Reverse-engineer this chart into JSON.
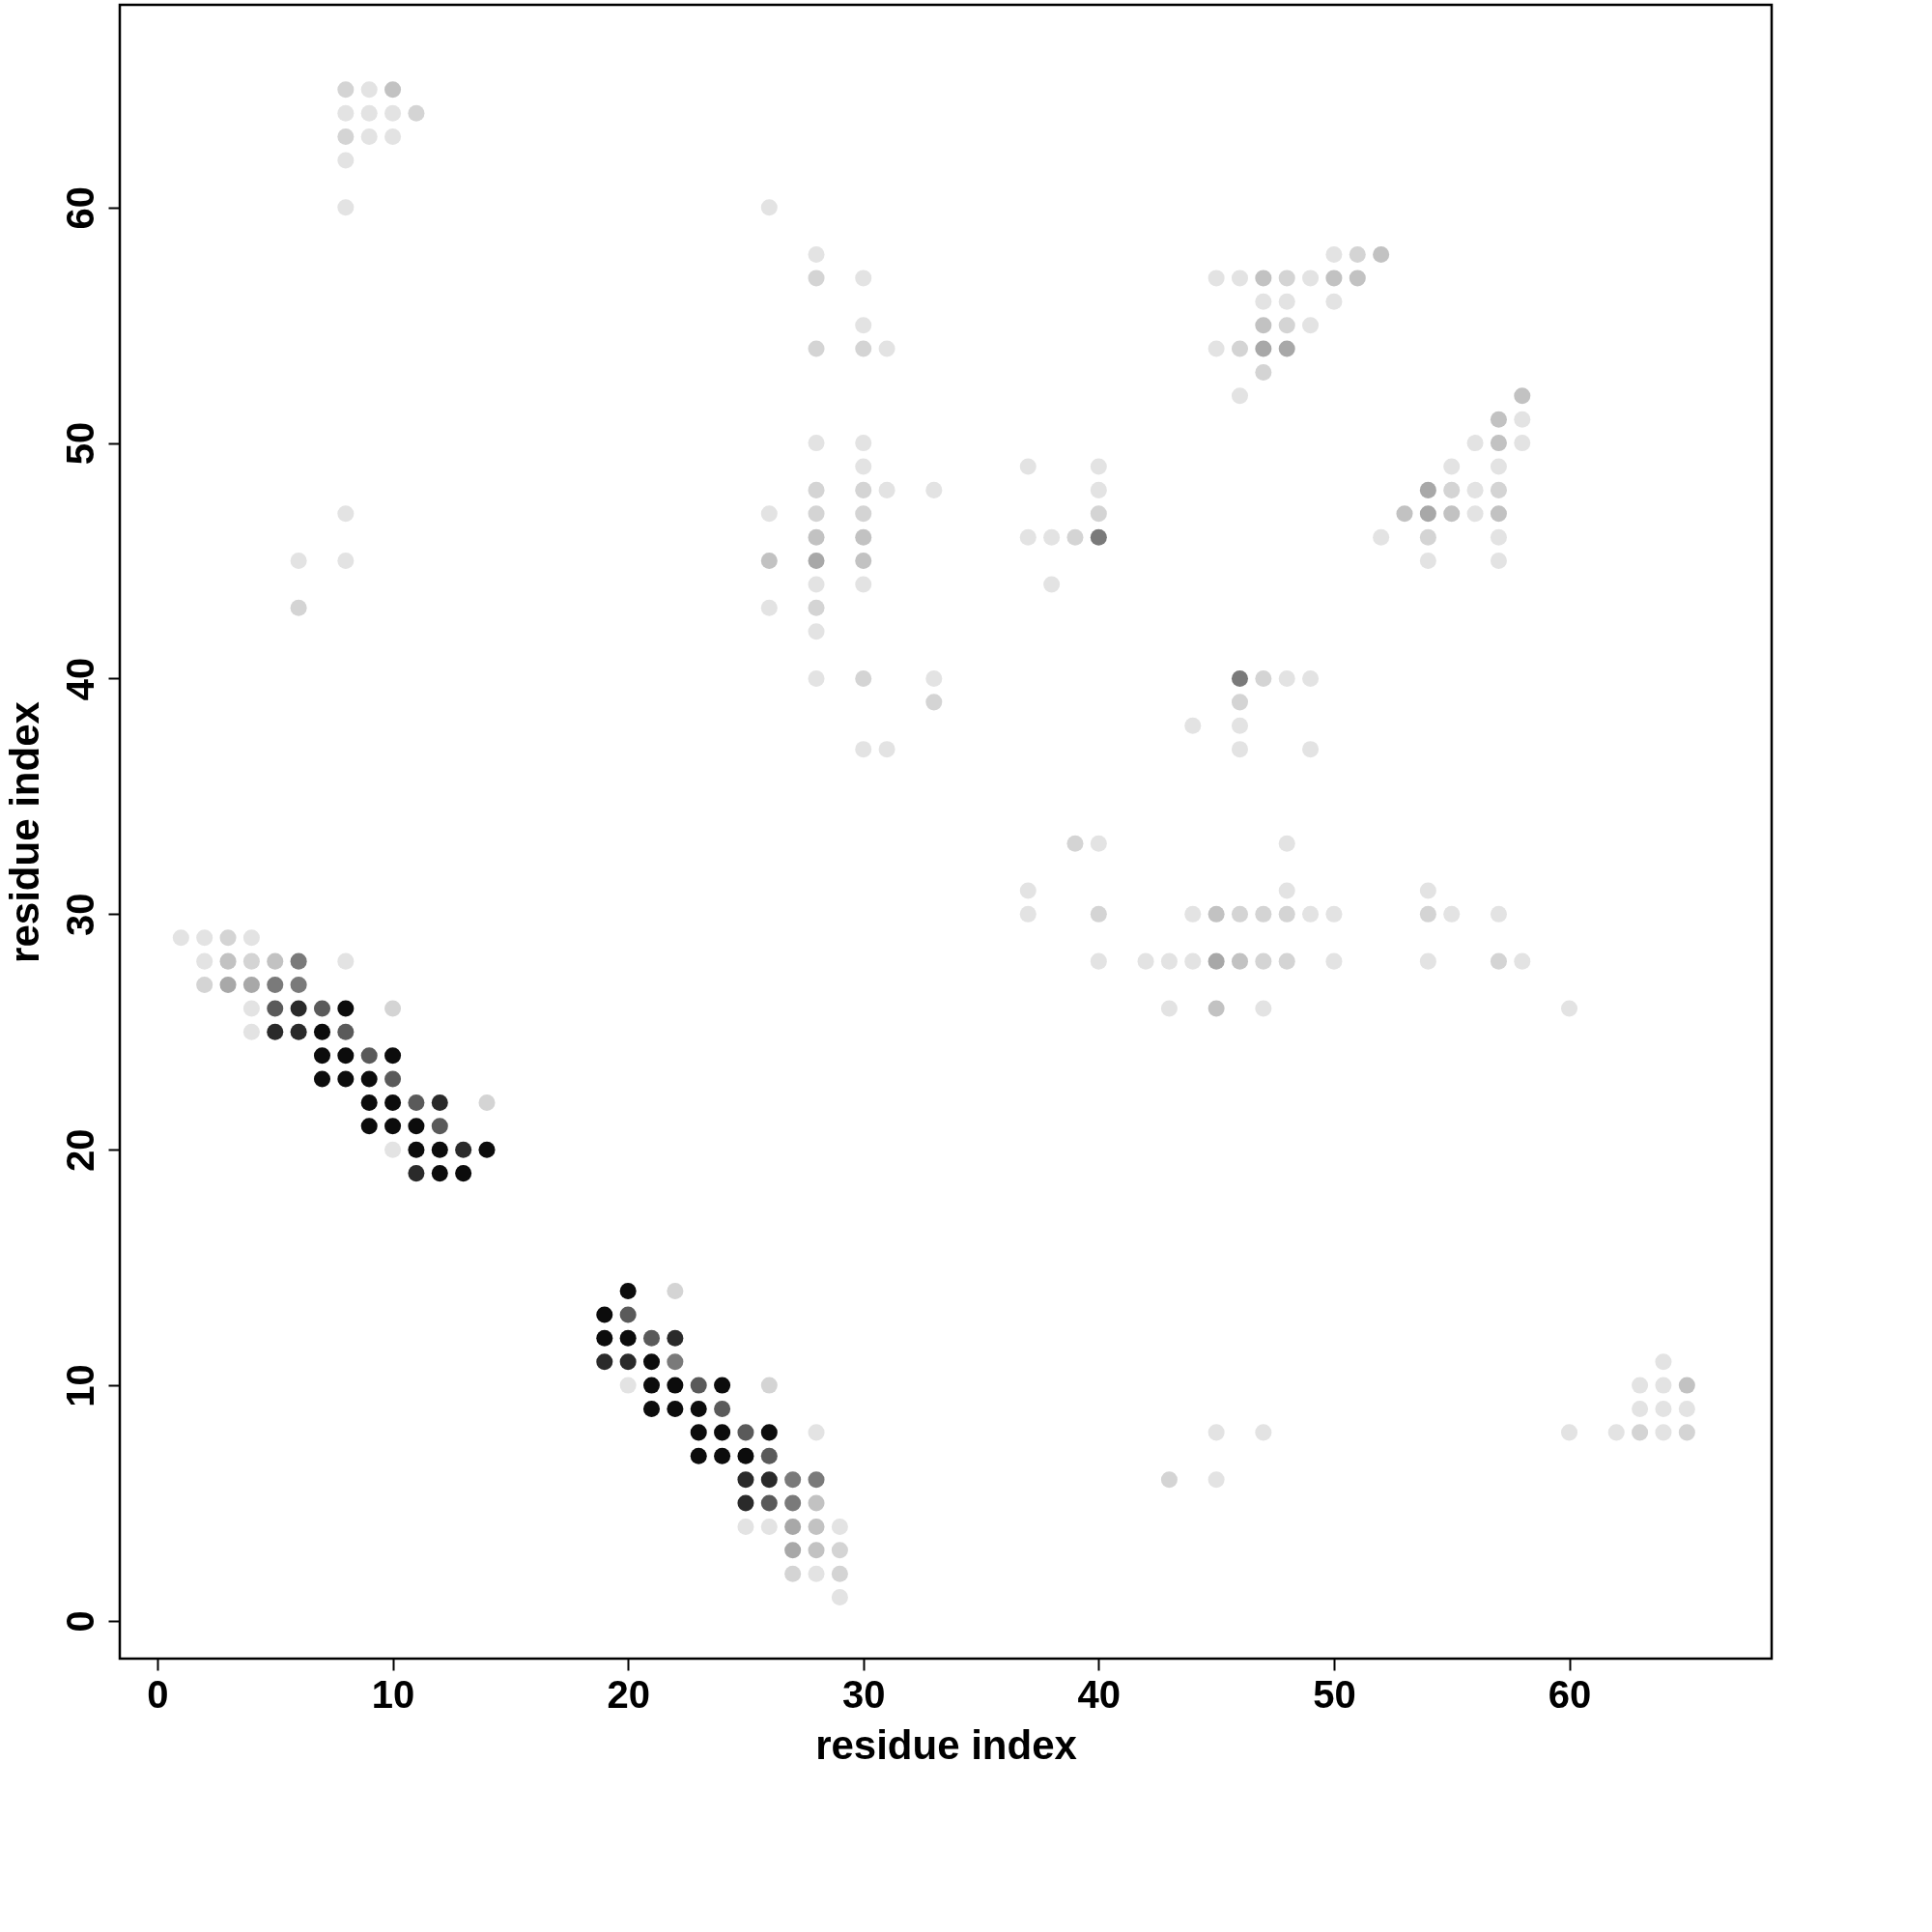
{
  "chart_data": {
    "type": "scatter",
    "xlabel": "residue index",
    "ylabel": "residue index",
    "xlim": [
      -1.6,
      68.6
    ],
    "ylim": [
      -1.6,
      68.6
    ],
    "xticks": [
      0,
      10,
      20,
      30,
      40,
      50,
      60
    ],
    "yticks": [
      0,
      10,
      20,
      30,
      40,
      50,
      60
    ],
    "grid": false,
    "marker": "circle",
    "series": [
      {
        "color": "#e3e3e3",
        "x": [
          9,
          8,
          9,
          10,
          9,
          10,
          8,
          8,
          26,
          28,
          50,
          30,
          45,
          46,
          49,
          47,
          48,
          50,
          30,
          49,
          31,
          45,
          46,
          58,
          28,
          30,
          56,
          58,
          30,
          37,
          40,
          55,
          57,
          31,
          33,
          40,
          56,
          8,
          26,
          56,
          37,
          38,
          52,
          57,
          6,
          8,
          54,
          57,
          28,
          30,
          38,
          26,
          28,
          28,
          33,
          48,
          49,
          44,
          46,
          30,
          31,
          46,
          49,
          40,
          48,
          37,
          48,
          54,
          37,
          44,
          49,
          50,
          55,
          57,
          1,
          2,
          4,
          2,
          8,
          40,
          42,
          43,
          44,
          50,
          54,
          58,
          4,
          43,
          47,
          60,
          4,
          10,
          20,
          63,
          64,
          63,
          64,
          65,
          28,
          45,
          47,
          60,
          62,
          64,
          45,
          25,
          26,
          29,
          28,
          29,
          64
        ],
        "values": [
          65,
          64,
          64,
          64,
          63,
          63,
          62,
          60,
          60,
          58,
          58,
          57,
          57,
          57,
          57,
          56,
          56,
          56,
          55,
          55,
          54,
          54,
          52,
          51,
          50,
          50,
          50,
          50,
          49,
          49,
          49,
          49,
          49,
          48,
          48,
          48,
          48,
          47,
          47,
          47,
          46,
          46,
          46,
          46,
          45,
          45,
          45,
          45,
          44,
          44,
          44,
          43,
          42,
          40,
          40,
          40,
          40,
          38,
          38,
          37,
          37,
          37,
          37,
          33,
          33,
          31,
          31,
          31,
          30,
          30,
          30,
          30,
          30,
          30,
          29,
          29,
          29,
          28,
          28,
          28,
          28,
          28,
          28,
          28,
          28,
          28,
          26,
          26,
          26,
          26,
          25,
          20,
          10,
          10,
          10,
          9,
          9,
          9,
          8,
          8,
          8,
          8,
          8,
          8,
          6,
          4,
          4,
          4,
          2,
          1,
          11
        ]
      },
      {
        "color": "#d4d4d4",
        "x": [
          8,
          11,
          8,
          51,
          28,
          48,
          48,
          28,
          30,
          46,
          47,
          28,
          30,
          55,
          57,
          28,
          30,
          40,
          39,
          54,
          6,
          28,
          30,
          47,
          33,
          46,
          39,
          40,
          46,
          47,
          48,
          54,
          3,
          4,
          47,
          48,
          57,
          2,
          10,
          14,
          22,
          26,
          63,
          65,
          43,
          29,
          27,
          29
        ],
        "values": [
          65,
          64,
          63,
          58,
          57,
          57,
          55,
          54,
          54,
          54,
          53,
          48,
          48,
          48,
          48,
          47,
          47,
          47,
          46,
          46,
          43,
          43,
          40,
          40,
          39,
          39,
          33,
          30,
          30,
          30,
          30,
          30,
          29,
          28,
          28,
          28,
          28,
          27,
          26,
          22,
          14,
          10,
          8,
          8,
          6,
          3,
          2,
          2
        ]
      },
      {
        "color": "#c2c2c2",
        "x": [
          10,
          52,
          47,
          50,
          51,
          47,
          58,
          57,
          57,
          53,
          55,
          57,
          28,
          30,
          26,
          30,
          45,
          3,
          5,
          46,
          45,
          65,
          28,
          28,
          28
        ],
        "values": [
          65,
          58,
          57,
          57,
          57,
          55,
          52,
          51,
          50,
          47,
          47,
          47,
          46,
          46,
          45,
          45,
          30,
          28,
          28,
          28,
          26,
          10,
          5,
          4,
          3
        ]
      },
      {
        "color": "#a8a8a8",
        "x": [
          47,
          48,
          54,
          54,
          28,
          45,
          3,
          4,
          27,
          27
        ],
        "values": [
          54,
          54,
          48,
          47,
          45,
          28,
          27,
          27,
          4,
          3
        ]
      },
      {
        "color": "#7a7a7a",
        "x": [
          40,
          46,
          6,
          5,
          6,
          22,
          27,
          28,
          27
        ],
        "values": [
          46,
          40,
          28,
          27,
          27,
          11,
          6,
          6,
          5
        ]
      },
      {
        "color": "#5a5a5a",
        "x": [
          5,
          7,
          8,
          9,
          10,
          11,
          12,
          20,
          21,
          23,
          24,
          25,
          26,
          26
        ],
        "values": [
          26,
          26,
          25,
          24,
          23,
          22,
          21,
          13,
          12,
          10,
          9,
          8,
          7,
          5
        ]
      },
      {
        "color": "#2a2a2a",
        "x": [
          6,
          5,
          6,
          12,
          13,
          11,
          22,
          19,
          20,
          25,
          26,
          25
        ],
        "values": [
          26,
          25,
          25,
          22,
          20,
          19,
          12,
          11,
          11,
          6,
          6,
          5
        ]
      },
      {
        "color": "#0c0c0c",
        "x": [
          8,
          7,
          7,
          8,
          10,
          7,
          8,
          9,
          9,
          10,
          9,
          10,
          11,
          11,
          12,
          14,
          12,
          13,
          20,
          19,
          19,
          20,
          21,
          21,
          22,
          24,
          21,
          22,
          23,
          23,
          24,
          26,
          23,
          24,
          25
        ],
        "values": [
          26,
          25,
          24,
          24,
          24,
          23,
          23,
          23,
          22,
          22,
          21,
          21,
          21,
          20,
          20,
          20,
          19,
          19,
          14,
          13,
          12,
          12,
          11,
          10,
          10,
          10,
          9,
          9,
          9,
          8,
          8,
          8,
          7,
          7,
          7
        ]
      }
    ]
  }
}
